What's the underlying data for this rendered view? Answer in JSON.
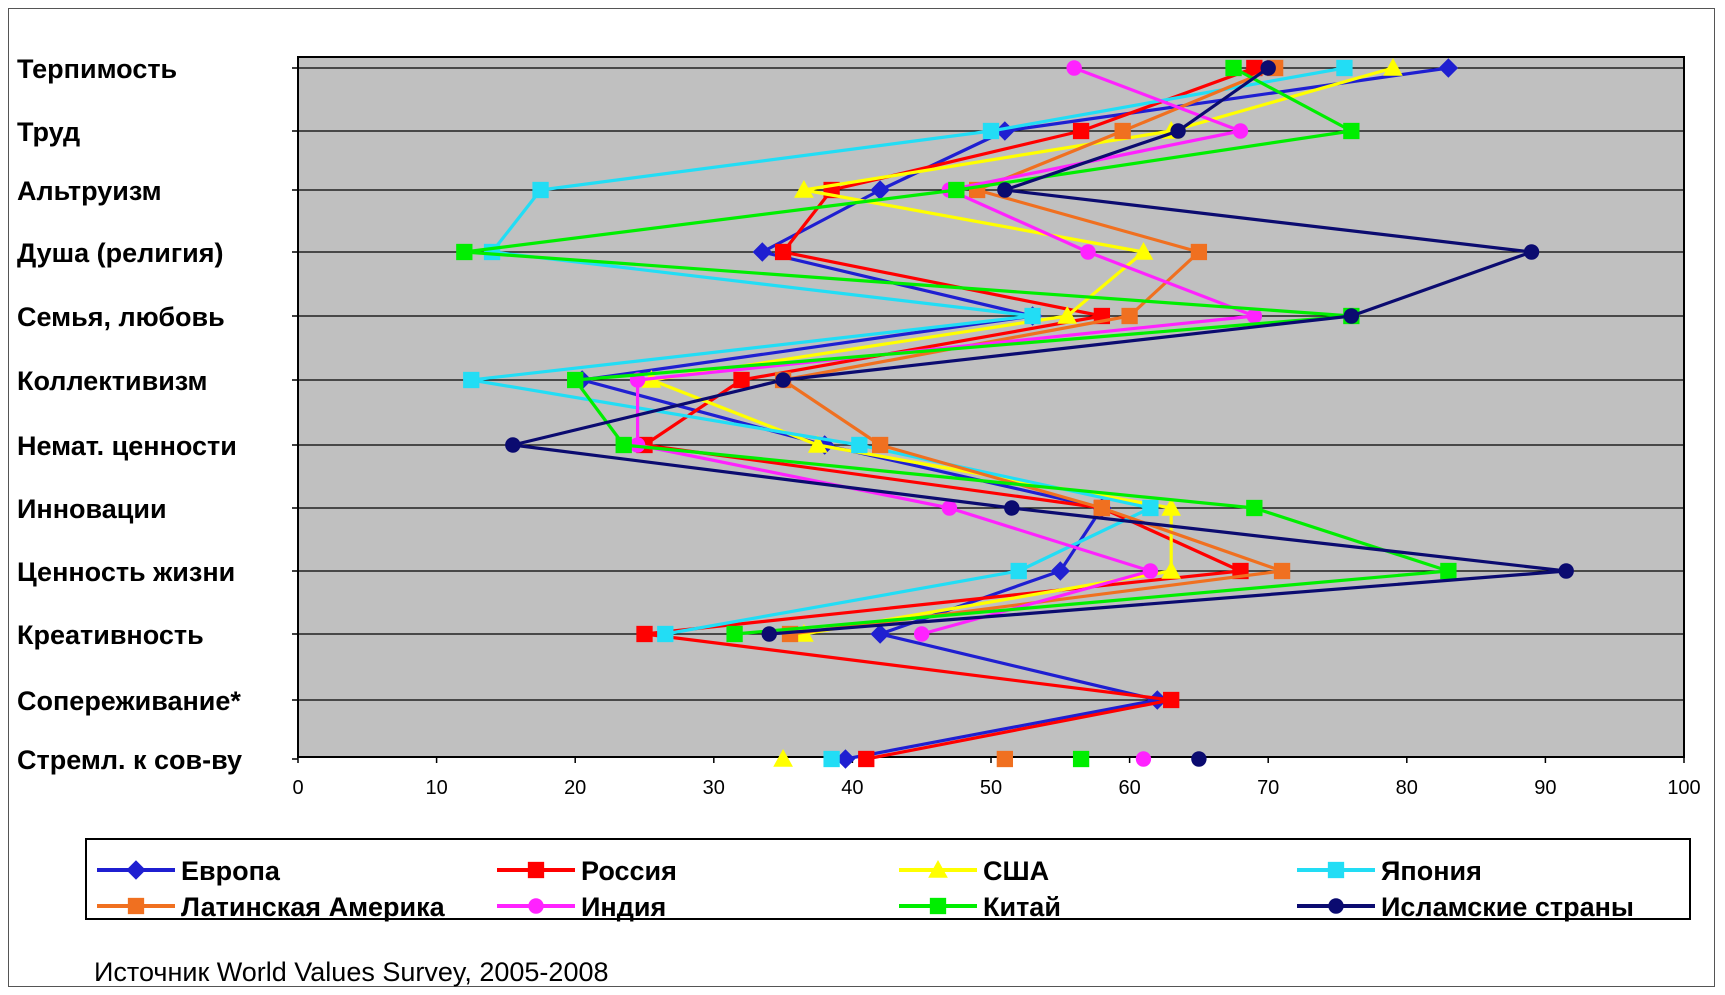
{
  "chart_data": {
    "type": "line",
    "orientation": "horizontal",
    "categories": [
      "Терпимость",
      "Труд",
      "Альтруизм",
      "Душа (религия)",
      "Семья, любовь",
      "Коллективизм",
      "Немат. ценности",
      "Инновации",
      "Ценность жизни",
      "Креативность",
      "Сопереживание*",
      "Стремл. к сов-ву"
    ],
    "xlim": [
      0,
      100
    ],
    "xticks": [
      0,
      10,
      20,
      30,
      40,
      50,
      60,
      70,
      80,
      90,
      100
    ],
    "grid": "horizontal",
    "legend_position": "bottom",
    "series": [
      {
        "name": "Европа",
        "color": "#1f1fd1",
        "marker": "diamond",
        "values": [
          83,
          51,
          42,
          33.5,
          53,
          20.5,
          38,
          58,
          55,
          42,
          62,
          39.5
        ]
      },
      {
        "name": "Россия",
        "color": "#ff0000",
        "marker": "square",
        "values": [
          69,
          56.5,
          38.5,
          35,
          58,
          32,
          25,
          58,
          68,
          25,
          63,
          41
        ]
      },
      {
        "name": "США",
        "color": "#ffff00",
        "marker": "triangle",
        "values": [
          79,
          63,
          36.5,
          61,
          55.5,
          25.5,
          37.5,
          63,
          63,
          36.5,
          null,
          35
        ]
      },
      {
        "name": "Япония",
        "color": "#22ddf5",
        "marker": "square",
        "values": [
          75.5,
          50,
          17.5,
          14,
          53,
          12.5,
          40.5,
          61.5,
          52,
          26.5,
          null,
          38.5
        ]
      },
      {
        "name": "Латинская Америка",
        "color": "#f07020",
        "marker": "square",
        "values": [
          70.5,
          59.5,
          49,
          65,
          60,
          35,
          42,
          58,
          71,
          35.5,
          null,
          51
        ]
      },
      {
        "name": "Индия",
        "color": "#ff22ff",
        "marker": "circle",
        "values": [
          56,
          68,
          47,
          57,
          69,
          24.5,
          24.5,
          47,
          61.5,
          45,
          null,
          61
        ]
      },
      {
        "name": "Китай",
        "color": "#00ee00",
        "marker": "square",
        "values": [
          67.5,
          76,
          47.5,
          12,
          76,
          20,
          23.5,
          69,
          83,
          31.5,
          null,
          56.5
        ]
      },
      {
        "name": "Исламские страны",
        "color": "#0b0b70",
        "marker": "circle",
        "values": [
          70,
          63.5,
          51,
          89,
          76,
          35,
          15.5,
          51.5,
          91.5,
          34,
          null,
          65
        ]
      }
    ],
    "note": "Источник World Values Survey, 2005-2008"
  }
}
